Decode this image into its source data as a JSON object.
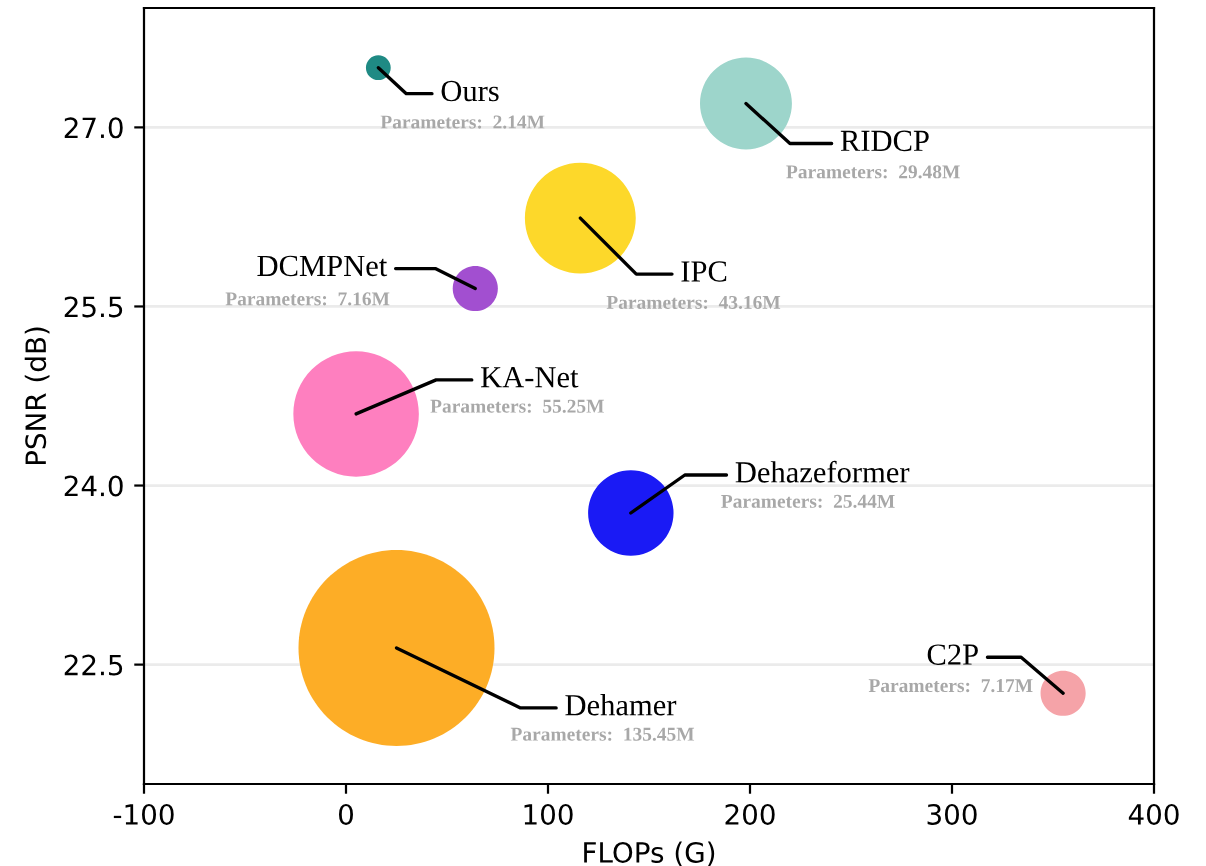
{
  "chart_data": {
    "type": "bubble",
    "xlabel": "FLOPs (G)",
    "ylabel": "PSNR (dB)",
    "xlim": [
      -100,
      400
    ],
    "xticks": [
      -100,
      0,
      100,
      200,
      300,
      400
    ],
    "ylim": [
      21.5,
      28.0
    ],
    "yticks": [
      {
        "value": 22.5,
        "label": "22.5"
      },
      {
        "value": 24.0,
        "label": "24.0"
      },
      {
        "value": 25.5,
        "label": "25.5"
      },
      {
        "value": 27.0,
        "label": "27.0"
      }
    ],
    "grid": "y",
    "x": [
      16,
      198,
      116,
      64,
      5,
      141,
      25,
      355
    ],
    "values": [
      27.5,
      27.2,
      26.24,
      25.65,
      24.6,
      23.77,
      22.64,
      22.26
    ],
    "sizes": [
      0.016,
      0.22,
      0.32,
      0.053,
      0.41,
      0.19,
      1,
      0.053
    ],
    "colors": [
      "#1f8a84",
      "#9dd5cb",
      "#fdd82a",
      "#a24fd0",
      "#fe7fbf",
      "#1a1af5",
      "#fdad26",
      "#f5a3a8"
    ],
    "annotations": [
      {
        "text": "Ours",
        "x": 16,
        "y": 27.5
      },
      {
        "text": "RIDCP",
        "x": 198,
        "y": 27.2
      },
      {
        "text": "IPC",
        "x": 116,
        "y": 26.24
      },
      {
        "text": "DCMPNet",
        "x": 64,
        "y": 25.65
      },
      {
        "text": "KA-Net",
        "x": 5,
        "y": 24.6
      },
      {
        "text": "Dehazeformer",
        "x": 141,
        "y": 23.77
      },
      {
        "text": "Dehamer",
        "x": 25,
        "y": 22.64
      },
      {
        "text": "C2P",
        "x": 355,
        "y": 22.26
      },
      {
        "text": "Parameters:  2.14M",
        "x": 16,
        "y": 27.5
      },
      {
        "text": "Parameters:  29.48M",
        "x": 198,
        "y": 27.2
      },
      {
        "text": "Parameters:  43.16M",
        "x": 116,
        "y": 26.24
      },
      {
        "text": "Parameters:  7.16M",
        "x": 64,
        "y": 25.65
      },
      {
        "text": "Parameters:  55.25M",
        "x": 5,
        "y": 24.6
      },
      {
        "text": "Parameters:  25.44M",
        "x": 141,
        "y": 23.77
      },
      {
        "text": "Parameters:  135.45M",
        "x": 25,
        "y": 22.64
      },
      {
        "text": "Parameters:  7.17M",
        "x": 355,
        "y": 22.26
      }
    ]
  }
}
